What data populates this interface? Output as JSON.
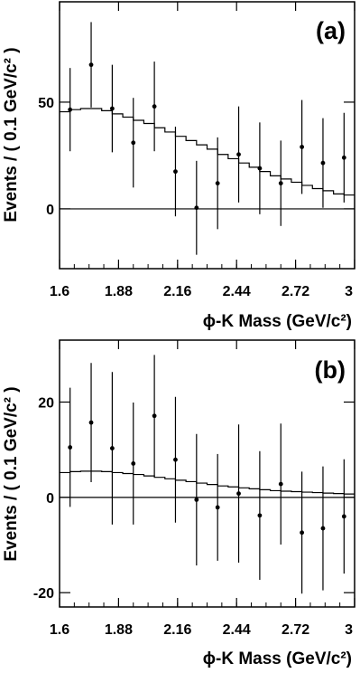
{
  "chart_data": [
    {
      "type": "scatter",
      "panel_label": "(a)",
      "xlabel": "ϕ-K Mass (GeV/c²)",
      "ylabel": "Events / ( 0.1 GeV/c² )",
      "xlim": [
        1.6,
        3.0
      ],
      "ylim": [
        -28,
        97
      ],
      "x_ticks": [
        "1.6",
        "1.88",
        "2.16",
        "2.44",
        "2.72",
        "3"
      ],
      "y_ticks": [
        "0",
        "50"
      ],
      "zero_line": true,
      "points": [
        {
          "x": 1.65,
          "y": 46.5,
          "err": 19.5
        },
        {
          "x": 1.75,
          "y": 67.5,
          "err": 20
        },
        {
          "x": 1.85,
          "y": 47,
          "err": 20.5
        },
        {
          "x": 1.95,
          "y": 31,
          "err": 21
        },
        {
          "x": 2.05,
          "y": 48,
          "err": 21
        },
        {
          "x": 2.15,
          "y": 17.5,
          "err": 21
        },
        {
          "x": 2.25,
          "y": 0.5,
          "err": 22
        },
        {
          "x": 2.35,
          "y": 12,
          "err": 21.5
        },
        {
          "x": 2.45,
          "y": 25.5,
          "err": 22.5
        },
        {
          "x": 2.55,
          "y": 19,
          "err": 21.5
        },
        {
          "x": 2.65,
          "y": 12,
          "err": 20
        },
        {
          "x": 2.75,
          "y": 29,
          "err": 22
        },
        {
          "x": 2.85,
          "y": 21.5,
          "err": 21
        },
        {
          "x": 2.95,
          "y": 24,
          "err": 21
        }
      ],
      "fit_steps": {
        "x": [
          1.6,
          1.65,
          1.7,
          1.75,
          1.8,
          1.85,
          1.9,
          1.95,
          2.0,
          2.05,
          2.1,
          2.15,
          2.2,
          2.25,
          2.3,
          2.35,
          2.4,
          2.45,
          2.5,
          2.55,
          2.6,
          2.65,
          2.7,
          2.75,
          2.8,
          2.85,
          2.9,
          2.95
        ],
        "y": [
          45.5,
          46.5,
          47,
          47,
          46,
          44.5,
          43,
          41.5,
          40,
          38,
          36,
          34,
          32,
          30,
          28,
          25.5,
          23.5,
          21.5,
          19.5,
          17.5,
          15.5,
          14,
          12.5,
          11,
          9.5,
          8.5,
          7,
          6.5
        ]
      }
    },
    {
      "type": "scatter",
      "panel_label": "(b)",
      "xlabel": "ϕ-K Mass (GeV/c²)",
      "ylabel": "Events / ( 0.1 GeV/c² )",
      "xlim": [
        1.6,
        3.0
      ],
      "ylim": [
        -23,
        33
      ],
      "x_ticks": [
        "1.6",
        "1.88",
        "2.16",
        "2.44",
        "2.72",
        "3"
      ],
      "y_ticks": [
        "-20",
        "0",
        "20"
      ],
      "zero_line": true,
      "points": [
        {
          "x": 1.65,
          "y": 10.5,
          "err": 12.5
        },
        {
          "x": 1.75,
          "y": 15.7,
          "err": 12.5
        },
        {
          "x": 1.85,
          "y": 10.3,
          "err": 16
        },
        {
          "x": 1.95,
          "y": 7.1,
          "err": 12.8
        },
        {
          "x": 2.05,
          "y": 17.1,
          "err": 12.8
        },
        {
          "x": 2.15,
          "y": 7.9,
          "err": 13.2
        },
        {
          "x": 2.25,
          "y": -0.5,
          "err": 13.8
        },
        {
          "x": 2.35,
          "y": -2.1,
          "err": 11.2
        },
        {
          "x": 2.45,
          "y": 0.8,
          "err": 14.5
        },
        {
          "x": 2.55,
          "y": -3.8,
          "err": 13.5
        },
        {
          "x": 2.65,
          "y": 2.8,
          "err": 12.7
        },
        {
          "x": 2.75,
          "y": -7.4,
          "err": 12.8
        },
        {
          "x": 2.85,
          "y": -6.5,
          "err": 13
        },
        {
          "x": 2.95,
          "y": -4,
          "err": 12
        }
      ],
      "fit_steps": {
        "x": [
          1.6,
          1.65,
          1.7,
          1.75,
          1.8,
          1.85,
          1.9,
          1.95,
          2.0,
          2.05,
          2.1,
          2.15,
          2.2,
          2.25,
          2.3,
          2.35,
          2.4,
          2.45,
          2.5,
          2.55,
          2.6,
          2.65,
          2.7,
          2.75,
          2.8,
          2.85,
          2.9,
          2.95
        ],
        "y": [
          5.2,
          5.4,
          5.5,
          5.5,
          5.4,
          5.2,
          5.0,
          4.8,
          4.5,
          4.2,
          3.9,
          3.6,
          3.3,
          3.0,
          2.7,
          2.4,
          2.2,
          2.0,
          1.8,
          1.6,
          1.4,
          1.3,
          1.2,
          1.1,
          1.0,
          0.9,
          0.8,
          0.7
        ]
      }
    }
  ]
}
